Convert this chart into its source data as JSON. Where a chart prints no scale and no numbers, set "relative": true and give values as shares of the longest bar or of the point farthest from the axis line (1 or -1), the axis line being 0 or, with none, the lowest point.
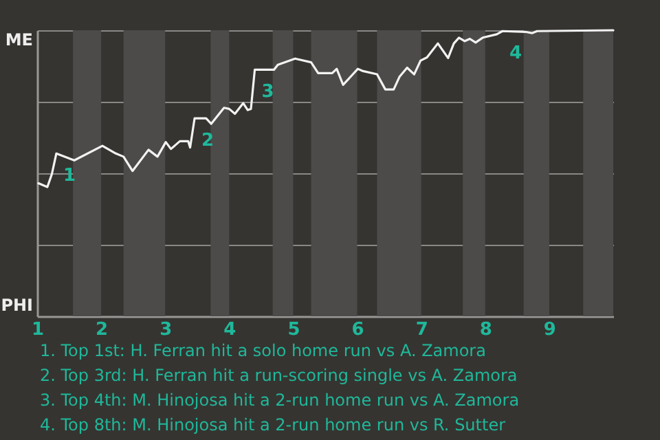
{
  "chart_data": {
    "type": "line",
    "x": [
      1.02,
      1.16,
      1.23,
      1.3,
      1.58,
      2.02,
      2.23,
      2.35,
      2.49,
      2.74,
      2.88,
      3.01,
      3.09,
      3.23,
      3.36,
      3.39,
      3.46,
      3.64,
      3.72,
      3.92,
      4.0,
      4.09,
      4.22,
      4.29,
      4.34,
      4.4,
      4.7,
      4.76,
      5.03,
      5.28,
      5.39,
      5.61,
      5.68,
      5.78,
      6.01,
      6.08,
      6.31,
      6.44,
      6.57,
      6.66,
      6.78,
      6.89,
      6.99,
      7.09,
      7.26,
      7.42,
      7.51,
      7.59,
      7.68,
      7.76,
      7.85,
      7.96,
      8.18,
      8.27,
      8.64,
      8.73,
      8.81,
      10
    ],
    "series": [
      {
        "color": "#f2f2f2",
        "values": [
          0.465,
          0.452,
          0.497,
          0.569,
          0.545,
          0.596,
          0.569,
          0.558,
          0.508,
          0.582,
          0.558,
          0.609,
          0.585,
          0.612,
          0.612,
          0.59,
          0.692,
          0.692,
          0.673,
          0.729,
          0.725,
          0.708,
          0.745,
          0.721,
          0.725,
          0.862,
          0.862,
          0.879,
          0.901,
          0.888,
          0.85,
          0.85,
          0.865,
          0.809,
          0.865,
          0.858,
          0.846,
          0.793,
          0.793,
          0.837,
          0.869,
          0.846,
          0.894,
          0.905,
          0.954,
          0.903,
          0.954,
          0.974,
          0.962,
          0.97,
          0.957,
          0.974,
          0.986,
          0.997,
          0.994,
          0.99,
          0.997,
          1.0
        ]
      }
    ],
    "xlim": [
      1,
      10
    ],
    "xticks": [
      1,
      2,
      3,
      4,
      5,
      6,
      7,
      8,
      9
    ],
    "relative": true,
    "grid": "y",
    "marker": "none",
    "line_style": "solid",
    "bands": [
      {
        "axis": "x",
        "from": 1.56,
        "to": 2.0,
        "color": "#4d4b49"
      },
      {
        "axis": "x",
        "from": 2.35,
        "to": 3.0,
        "color": "#4d4b49"
      },
      {
        "axis": "x",
        "from": 3.71,
        "to": 4.0,
        "color": "#4d4b49"
      },
      {
        "axis": "x",
        "from": 4.68,
        "to": 5.0,
        "color": "#4d4b49"
      },
      {
        "axis": "x",
        "from": 5.28,
        "to": 6.0,
        "color": "#4d4b49"
      },
      {
        "axis": "x",
        "from": 6.31,
        "to": 7.0,
        "color": "#4d4b49"
      },
      {
        "axis": "x",
        "from": 7.65,
        "to": 8.0,
        "color": "#4d4b49"
      },
      {
        "axis": "x",
        "from": 8.6,
        "to": 9.0,
        "color": "#4d4b49"
      },
      {
        "axis": "x",
        "from": 9.53,
        "to": 10.0,
        "color": "#4d4b49"
      }
    ],
    "annotations": [
      {
        "text": "1",
        "x": 1.3,
        "y": 0.569
      },
      {
        "text": "2",
        "x": 3.46,
        "y": 0.692
      },
      {
        "text": "3",
        "x": 4.4,
        "y": 0.862
      },
      {
        "text": "4",
        "x": 8.27,
        "y": 0.997
      },
      "ME",
      "PHI",
      "1. Top 1st: H. Ferran hit a solo home run vs A. Zamora",
      "2. Top 3rd: H. Ferran hit a run-scoring single vs A. Zamora",
      "3. Top 4th: M. Hinojosa hit a 2-run home run vs A. Zamora",
      "4. Top 8th: M. Hinojosa hit a 2-run home run vs R. Sutter"
    ]
  }
}
